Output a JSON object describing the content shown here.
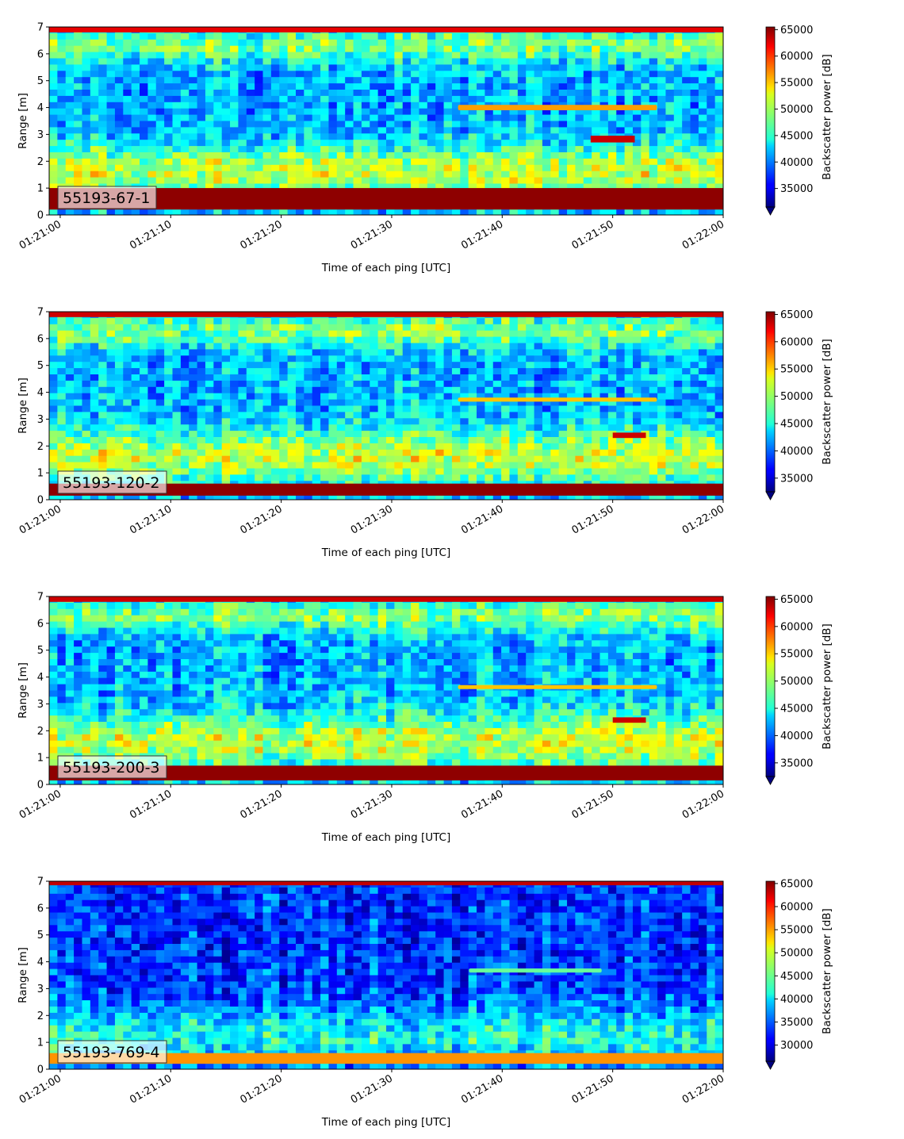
{
  "chart_data": [
    {
      "type": "heatmap",
      "title": "",
      "annotation": "55193-67-1",
      "xlabel": "Time of each ping [UTC]",
      "ylabel": "Range [m]",
      "x_ticks": [
        "01:21:00",
        "01:21:10",
        "01:21:20",
        "01:21:30",
        "01:21:40",
        "01:21:50",
        "01:22:00"
      ],
      "xlim": [
        "01:20:59",
        "01:22:00"
      ],
      "y_ticks": [
        0,
        1,
        2,
        3,
        4,
        5,
        6,
        7
      ],
      "ylim": [
        0,
        7
      ],
      "colorbar": {
        "label": "Backscatter power [dB]",
        "ticks": [
          35000,
          40000,
          45000,
          50000,
          55000,
          60000,
          65000
        ],
        "range": [
          31500,
          65500
        ],
        "extend": "min",
        "colormap": "jet"
      },
      "features": [
        {
          "kind": "near-range band",
          "range_m": [
            0.2,
            1.0
          ],
          "level": 65000
        },
        {
          "kind": "far-range band",
          "range_m": [
            6.8,
            7.0
          ],
          "level": 62000
        },
        {
          "kind": "target track",
          "time": [
            "01:21:36",
            "01:21:54"
          ],
          "range_m": [
            3.9,
            4.1
          ],
          "level": 56000
        },
        {
          "kind": "target",
          "time": [
            "01:21:48",
            "01:21:52"
          ],
          "range_m": [
            2.7,
            2.95
          ],
          "level": 63000
        }
      ]
    },
    {
      "type": "heatmap",
      "title": "",
      "annotation": "55193-120-2",
      "xlabel": "Time of each ping [UTC]",
      "ylabel": "Range [m]",
      "x_ticks": [
        "01:21:00",
        "01:21:10",
        "01:21:20",
        "01:21:30",
        "01:21:40",
        "01:21:50",
        "01:22:00"
      ],
      "xlim": [
        "01:20:59",
        "01:22:00"
      ],
      "y_ticks": [
        0,
        1,
        2,
        3,
        4,
        5,
        6,
        7
      ],
      "ylim": [
        0,
        7
      ],
      "colorbar": {
        "label": "Backscatter power [dB]",
        "ticks": [
          35000,
          40000,
          45000,
          50000,
          55000,
          60000,
          65000
        ],
        "range": [
          32500,
          65500
        ],
        "extend": "min",
        "colormap": "jet"
      },
      "features": [
        {
          "kind": "near-range band",
          "range_m": [
            0.15,
            0.6
          ],
          "level": 65000
        },
        {
          "kind": "far-range band",
          "range_m": [
            6.8,
            7.0
          ],
          "level": 63000
        },
        {
          "kind": "target track",
          "time": [
            "01:21:36",
            "01:21:54"
          ],
          "range_m": [
            3.65,
            3.8
          ],
          "level": 55000
        },
        {
          "kind": "target",
          "time": [
            "01:21:50",
            "01:21:53"
          ],
          "range_m": [
            2.3,
            2.5
          ],
          "level": 63000
        }
      ]
    },
    {
      "type": "heatmap",
      "title": "",
      "annotation": "55193-200-3",
      "xlabel": "Time of each ping [UTC]",
      "ylabel": "Range [m]",
      "x_ticks": [
        "01:21:00",
        "01:21:10",
        "01:21:20",
        "01:21:30",
        "01:21:40",
        "01:21:50",
        "01:22:00"
      ],
      "xlim": [
        "01:20:59",
        "01:22:00"
      ],
      "y_ticks": [
        0,
        1,
        2,
        3,
        4,
        5,
        6,
        7
      ],
      "ylim": [
        0,
        7
      ],
      "colorbar": {
        "label": "Backscatter power [dB]",
        "ticks": [
          35000,
          40000,
          45000,
          50000,
          55000,
          60000,
          65000
        ],
        "range": [
          32500,
          65500
        ],
        "extend": "min",
        "colormap": "jet"
      },
      "features": [
        {
          "kind": "near-range band",
          "range_m": [
            0.15,
            0.7
          ],
          "level": 65000
        },
        {
          "kind": "far-range band",
          "range_m": [
            6.8,
            7.0
          ],
          "level": 63000
        },
        {
          "kind": "target track",
          "time": [
            "01:21:36",
            "01:21:54"
          ],
          "range_m": [
            3.55,
            3.7
          ],
          "level": 55000
        },
        {
          "kind": "target",
          "time": [
            "01:21:50",
            "01:21:53"
          ],
          "range_m": [
            2.3,
            2.5
          ],
          "level": 63000
        }
      ]
    },
    {
      "type": "heatmap",
      "title": "",
      "annotation": "55193-769-4",
      "xlabel": "Time of each ping [UTC]",
      "ylabel": "Range [m]",
      "x_ticks": [
        "01:21:00",
        "01:21:10",
        "01:21:20",
        "01:21:30",
        "01:21:40",
        "01:21:50",
        "01:22:00"
      ],
      "xlim": [
        "01:20:59",
        "01:22:00"
      ],
      "y_ticks": [
        0,
        1,
        2,
        3,
        4,
        5,
        6,
        7
      ],
      "ylim": [
        0,
        7
      ],
      "colorbar": {
        "label": "Backscatter power [dB]",
        "ticks": [
          30000,
          35000,
          40000,
          45000,
          50000,
          55000,
          60000,
          65000
        ],
        "range": [
          26500,
          65500
        ],
        "extend": "min",
        "colormap": "jet"
      },
      "features": [
        {
          "kind": "near-range band",
          "range_m": [
            0.2,
            0.6
          ],
          "level": 55000
        },
        {
          "kind": "far-range band",
          "range_m": [
            6.85,
            7.0
          ],
          "level": 63000
        },
        {
          "kind": "target track",
          "time": [
            "01:21:37",
            "01:21:49"
          ],
          "range_m": [
            3.6,
            3.75
          ],
          "level": 45000
        }
      ]
    }
  ]
}
